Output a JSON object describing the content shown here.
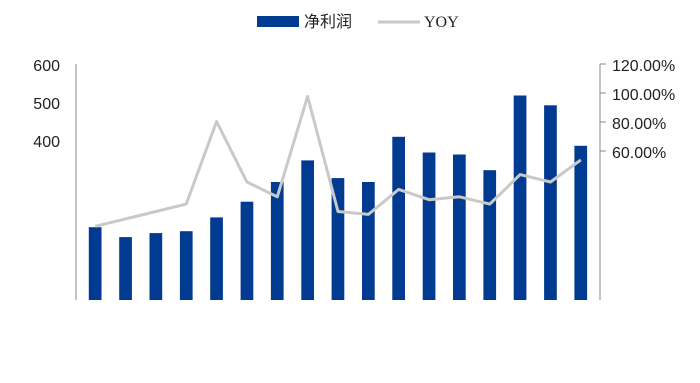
{
  "chart_data": {
    "type": "bar",
    "legend": [
      {
        "name": "净利润",
        "kind": "bar",
        "color": "#003a91"
      },
      {
        "name": "YOY",
        "kind": "line",
        "color": "#c9c9c9"
      }
    ],
    "left_axis": {
      "ticks": [
        "600",
        "500",
        "400"
      ],
      "ylim": [
        0,
        600
      ]
    },
    "right_axis": {
      "ticks": [
        "120.00%",
        "100.00%",
        "80.00%",
        "60.00%"
      ],
      "ylim": [
        -40,
        120
      ]
    },
    "series": [
      {
        "name": "净利润",
        "type": "bar",
        "color": "#003a91",
        "values": [
          185,
          160,
          170,
          175,
          210,
          250,
          300,
          355,
          310,
          300,
          415,
          375,
          370,
          330,
          520,
          495,
          392
        ]
      },
      {
        "name": "YOY",
        "type": "line",
        "color": "#c9c9c9",
        "values": [
          10,
          15,
          20,
          25,
          81,
          40,
          30,
          98,
          20,
          18,
          35,
          28,
          30,
          25,
          45,
          40,
          55
        ]
      }
    ],
    "legend_position": "top-center",
    "grid": false
  }
}
